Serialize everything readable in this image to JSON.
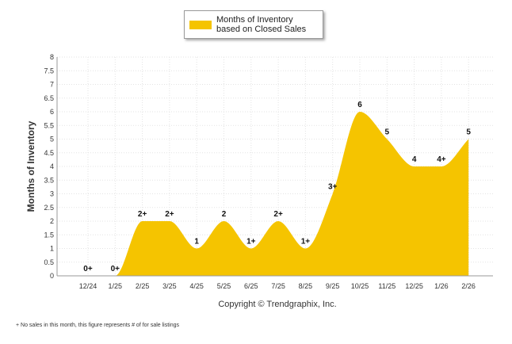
{
  "legend": {
    "label": "Months of Inventory based on Closed Sales",
    "color": "#F5C400"
  },
  "copyright": "Copyright © Trendgraphix, Inc.",
  "footnote": "+  No sales in this month, this figure represents # of for sale listings",
  "chart_data": {
    "type": "area",
    "title": "",
    "xlabel": "",
    "ylabel": "Months of Inventory",
    "ylim": [
      0,
      8
    ],
    "yticks": [
      "0",
      "0.5",
      "1",
      "1.5",
      "2",
      "2.5",
      "3",
      "3.5",
      "4",
      "4.5",
      "5",
      "5.5",
      "6",
      "6.5",
      "7",
      "7.5",
      "8"
    ],
    "grid": true,
    "legend_position": "top-center",
    "fill_color": "#F5C400",
    "categories": [
      "12/24",
      "1/25",
      "2/25",
      "3/25",
      "4/25",
      "5/25",
      "6/25",
      "7/25",
      "8/25",
      "9/25",
      "10/25",
      "11/25",
      "12/25",
      "1/26",
      "2/26"
    ],
    "values": [
      0,
      0,
      2,
      2,
      1,
      2,
      1,
      2,
      1,
      3,
      6,
      5,
      4,
      4,
      5
    ],
    "data_labels": [
      "0+",
      "0+",
      "2+",
      "2+",
      "1",
      "2",
      "1+",
      "2+",
      "1+",
      "3+",
      "6",
      "5",
      "4",
      "4+",
      "5"
    ],
    "series": [
      {
        "name": "Months of Inventory based on Closed Sales",
        "values": [
          0,
          0,
          2,
          2,
          1,
          2,
          1,
          2,
          1,
          3,
          6,
          5,
          4,
          4,
          5
        ]
      }
    ]
  }
}
